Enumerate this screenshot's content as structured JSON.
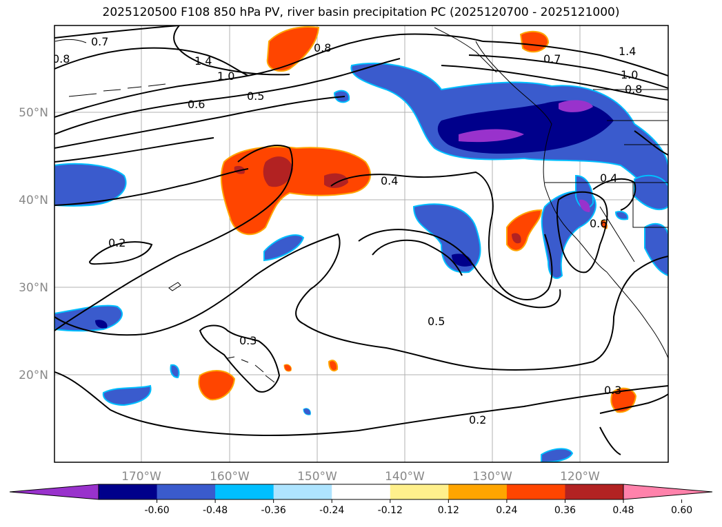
{
  "title": "2025120500 F108 850 hPa PV, river basin precipitation PC (2025120700 - 2025121000)",
  "lat_labels": [
    "50°N",
    "40°N",
    "30°N",
    "20°N"
  ],
  "lon_labels": [
    "170°W",
    "160°W",
    "150°W",
    "140°W",
    "130°W",
    "120°W"
  ],
  "contour_labels": [
    "0.7",
    "0.8",
    "1.0",
    "1.4",
    "0.6",
    "0.5",
    "0.4",
    "0.2",
    "0.3",
    "0.5",
    "0.3",
    "0.2",
    "0.8",
    "0.7",
    "0.8",
    "1.0",
    "1.4",
    "0.4",
    "0.6"
  ],
  "colorbar": {
    "ticks": [
      "-0.60",
      "-0.48",
      "-0.36",
      "-0.24",
      "-0.12",
      "0.12",
      "0.24",
      "0.36",
      "0.48",
      "0.60"
    ],
    "colors": [
      "#9932cc",
      "#00008b",
      "#3a5bcd",
      "#00bfff",
      "#aee4ff",
      "#ffffff",
      "#fff08c",
      "#ffa500",
      "#ff4500",
      "#b22222",
      "#ff82ab"
    ]
  }
}
